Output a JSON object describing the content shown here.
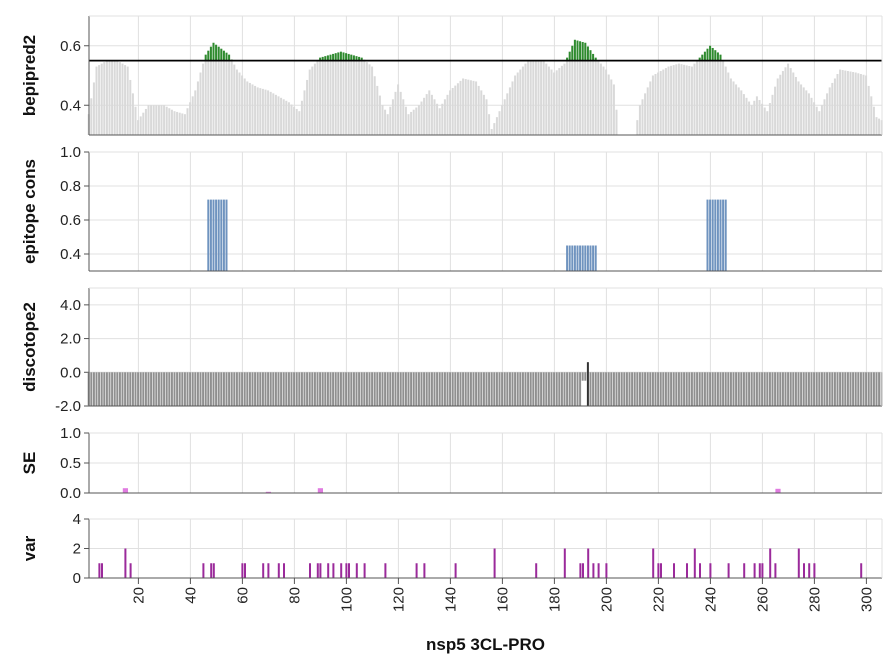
{
  "chart_data": {
    "type": "bar",
    "xlabel": "nsp5 3CL-PRO",
    "x_range": [
      1,
      306
    ],
    "x_ticks": [
      20,
      40,
      60,
      80,
      100,
      120,
      140,
      160,
      180,
      200,
      220,
      240,
      260,
      280,
      300
    ],
    "colors": {
      "bepipred_bar": "#d9d9d9",
      "bepipred_above": "#2e8b2e",
      "threshold_line": "#000000",
      "epitope": "#6f93bf",
      "discotope": "#8f8f8f",
      "se": "#e07be0",
      "var": "#9b2a9b",
      "grid": "#e0e0e0",
      "axis": "#555555"
    },
    "panels": [
      {
        "id": "bepipred2",
        "ylabel": "bepipred2",
        "ylim": [
          0.3,
          0.7
        ],
        "yticks": [
          "0.4",
          "0.6"
        ],
        "ytick_values": [
          0.4,
          0.6
        ],
        "threshold": 0.55,
        "profile": [
          [
            1,
            0.37
          ],
          [
            4,
            0.53
          ],
          [
            8,
            0.55
          ],
          [
            12,
            0.55
          ],
          [
            16,
            0.53
          ],
          [
            20,
            0.35
          ],
          [
            24,
            0.4
          ],
          [
            30,
            0.4
          ],
          [
            34,
            0.38
          ],
          [
            38,
            0.37
          ],
          [
            42,
            0.45
          ],
          [
            46,
            0.57
          ],
          [
            49,
            0.61
          ],
          [
            52,
            0.59
          ],
          [
            55,
            0.57
          ],
          [
            58,
            0.52
          ],
          [
            62,
            0.48
          ],
          [
            66,
            0.46
          ],
          [
            70,
            0.45
          ],
          [
            74,
            0.43
          ],
          [
            78,
            0.41
          ],
          [
            82,
            0.38
          ],
          [
            86,
            0.52
          ],
          [
            90,
            0.56
          ],
          [
            94,
            0.57
          ],
          [
            98,
            0.58
          ],
          [
            102,
            0.57
          ],
          [
            106,
            0.56
          ],
          [
            110,
            0.53
          ],
          [
            114,
            0.4
          ],
          [
            116,
            0.37
          ],
          [
            120,
            0.47
          ],
          [
            124,
            0.37
          ],
          [
            128,
            0.4
          ],
          [
            132,
            0.45
          ],
          [
            136,
            0.39
          ],
          [
            140,
            0.45
          ],
          [
            145,
            0.49
          ],
          [
            150,
            0.48
          ],
          [
            154,
            0.42
          ],
          [
            156,
            0.32
          ],
          [
            160,
            0.4
          ],
          [
            165,
            0.5
          ],
          [
            170,
            0.55
          ],
          [
            176,
            0.55
          ],
          [
            180,
            0.51
          ],
          [
            184,
            0.54
          ],
          [
            188,
            0.62
          ],
          [
            192,
            0.61
          ],
          [
            196,
            0.56
          ],
          [
            200,
            0.52
          ],
          [
            203,
            0.47
          ],
          [
            205,
            0.3
          ],
          [
            211,
            0.3
          ],
          [
            213,
            0.4
          ],
          [
            218,
            0.5
          ],
          [
            224,
            0.53
          ],
          [
            228,
            0.54
          ],
          [
            233,
            0.53
          ],
          [
            236,
            0.56
          ],
          [
            240,
            0.6
          ],
          [
            244,
            0.57
          ],
          [
            248,
            0.49
          ],
          [
            252,
            0.45
          ],
          [
            256,
            0.4
          ],
          [
            258,
            0.43
          ],
          [
            262,
            0.38
          ],
          [
            266,
            0.49
          ],
          [
            270,
            0.54
          ],
          [
            274,
            0.48
          ],
          [
            278,
            0.44
          ],
          [
            282,
            0.38
          ],
          [
            286,
            0.46
          ],
          [
            290,
            0.52
          ],
          [
            296,
            0.51
          ],
          [
            300,
            0.5
          ],
          [
            304,
            0.36
          ],
          [
            306,
            0.35
          ]
        ]
      },
      {
        "id": "epitope_cons",
        "ylabel": "epitope cons",
        "ylim": [
          0.3,
          1.0
        ],
        "yticks": [
          "0.4",
          "0.6",
          "0.8",
          "1.0"
        ],
        "ytick_values": [
          0.4,
          0.6,
          0.8,
          1.0
        ],
        "bars": [
          [
            47,
            54,
            0.72
          ],
          [
            185,
            196,
            0.45
          ],
          [
            239,
            246,
            0.72
          ]
        ]
      },
      {
        "id": "discotope2",
        "ylabel": "discotope2",
        "ylim": [
          -2.0,
          5.0
        ],
        "yticks": [
          "-2.0",
          "0.0",
          "2.0",
          "4.0"
        ],
        "ytick_values": [
          -2.0,
          0.0,
          2.0,
          4.0
        ],
        "baseline": -2.0,
        "default_value": 0.0,
        "special": [
          [
            191,
            -0.5
          ],
          [
            192,
            -0.5
          ],
          [
            193,
            0.6
          ]
        ]
      },
      {
        "id": "SE",
        "ylabel": "SE",
        "ylim": [
          0.0,
          1.0
        ],
        "yticks": [
          "0.0",
          "0.5",
          "1.0"
        ],
        "ytick_values": [
          0.0,
          0.5,
          1.0
        ],
        "bars": [
          [
            15,
            0.08
          ],
          [
            90,
            0.08
          ],
          [
            266,
            0.07
          ],
          [
            70,
            0.02
          ]
        ]
      },
      {
        "id": "var",
        "ylabel": "var",
        "ylim": [
          0,
          4
        ],
        "yticks": [
          "0",
          "2",
          "4"
        ],
        "ytick_values": [
          0,
          2,
          4
        ],
        "bars": [
          [
            5,
            1
          ],
          [
            6,
            1
          ],
          [
            15,
            2
          ],
          [
            17,
            1
          ],
          [
            45,
            1
          ],
          [
            48,
            1
          ],
          [
            49,
            1
          ],
          [
            60,
            1
          ],
          [
            61,
            1
          ],
          [
            68,
            1
          ],
          [
            70,
            1
          ],
          [
            74,
            1
          ],
          [
            76,
            1
          ],
          [
            86,
            1
          ],
          [
            89,
            1
          ],
          [
            90,
            1
          ],
          [
            93,
            1
          ],
          [
            95,
            1
          ],
          [
            98,
            1
          ],
          [
            100,
            1
          ],
          [
            101,
            1
          ],
          [
            104,
            1
          ],
          [
            107,
            1
          ],
          [
            115,
            1
          ],
          [
            127,
            1
          ],
          [
            130,
            1
          ],
          [
            142,
            1
          ],
          [
            157,
            2
          ],
          [
            173,
            1
          ],
          [
            184,
            2
          ],
          [
            190,
            1
          ],
          [
            191,
            1
          ],
          [
            193,
            2
          ],
          [
            195,
            1
          ],
          [
            197,
            1
          ],
          [
            200,
            1
          ],
          [
            218,
            2
          ],
          [
            220,
            1
          ],
          [
            221,
            1
          ],
          [
            226,
            1
          ],
          [
            231,
            1
          ],
          [
            234,
            2
          ],
          [
            236,
            1
          ],
          [
            240,
            1
          ],
          [
            247,
            1
          ],
          [
            253,
            1
          ],
          [
            257,
            1
          ],
          [
            259,
            1
          ],
          [
            260,
            1
          ],
          [
            263,
            2
          ],
          [
            265,
            1
          ],
          [
            274,
            2
          ],
          [
            276,
            1
          ],
          [
            278,
            1
          ],
          [
            280,
            1
          ],
          [
            298,
            1
          ]
        ]
      }
    ]
  }
}
